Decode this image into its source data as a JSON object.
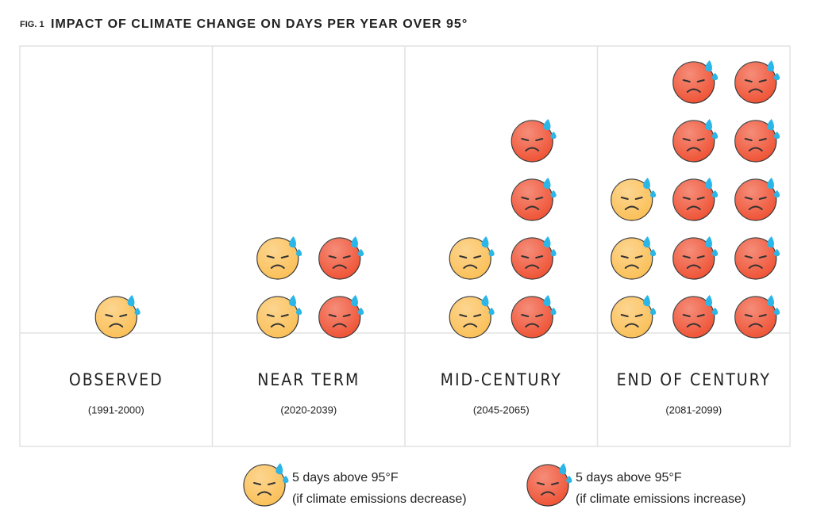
{
  "chart_data": {
    "type": "pictogram",
    "figure_label": "FIG. 1",
    "title": "IMPACT OF CLIMATE CHANGE ON DAYS PER YEAR OVER 95°",
    "categories": [
      "OBSERVED",
      "NEAR TERM",
      "MID-CENTURY",
      "END OF CENTURY"
    ],
    "periods": [
      "(1991-2000)",
      "(2020-2039)",
      "(2045-2065)",
      "(2081-2099)"
    ],
    "series": [
      {
        "name": "5 days above 95°F",
        "description": "(if climate emissions decrease)",
        "color": "#fbbf55",
        "values": [
          1,
          2,
          2,
          3
        ]
      },
      {
        "name": "5 days above 95°F",
        "description": "(if climate emissions increase)",
        "color": "#ef5032",
        "values": [
          0,
          2,
          4,
          10
        ]
      }
    ]
  }
}
